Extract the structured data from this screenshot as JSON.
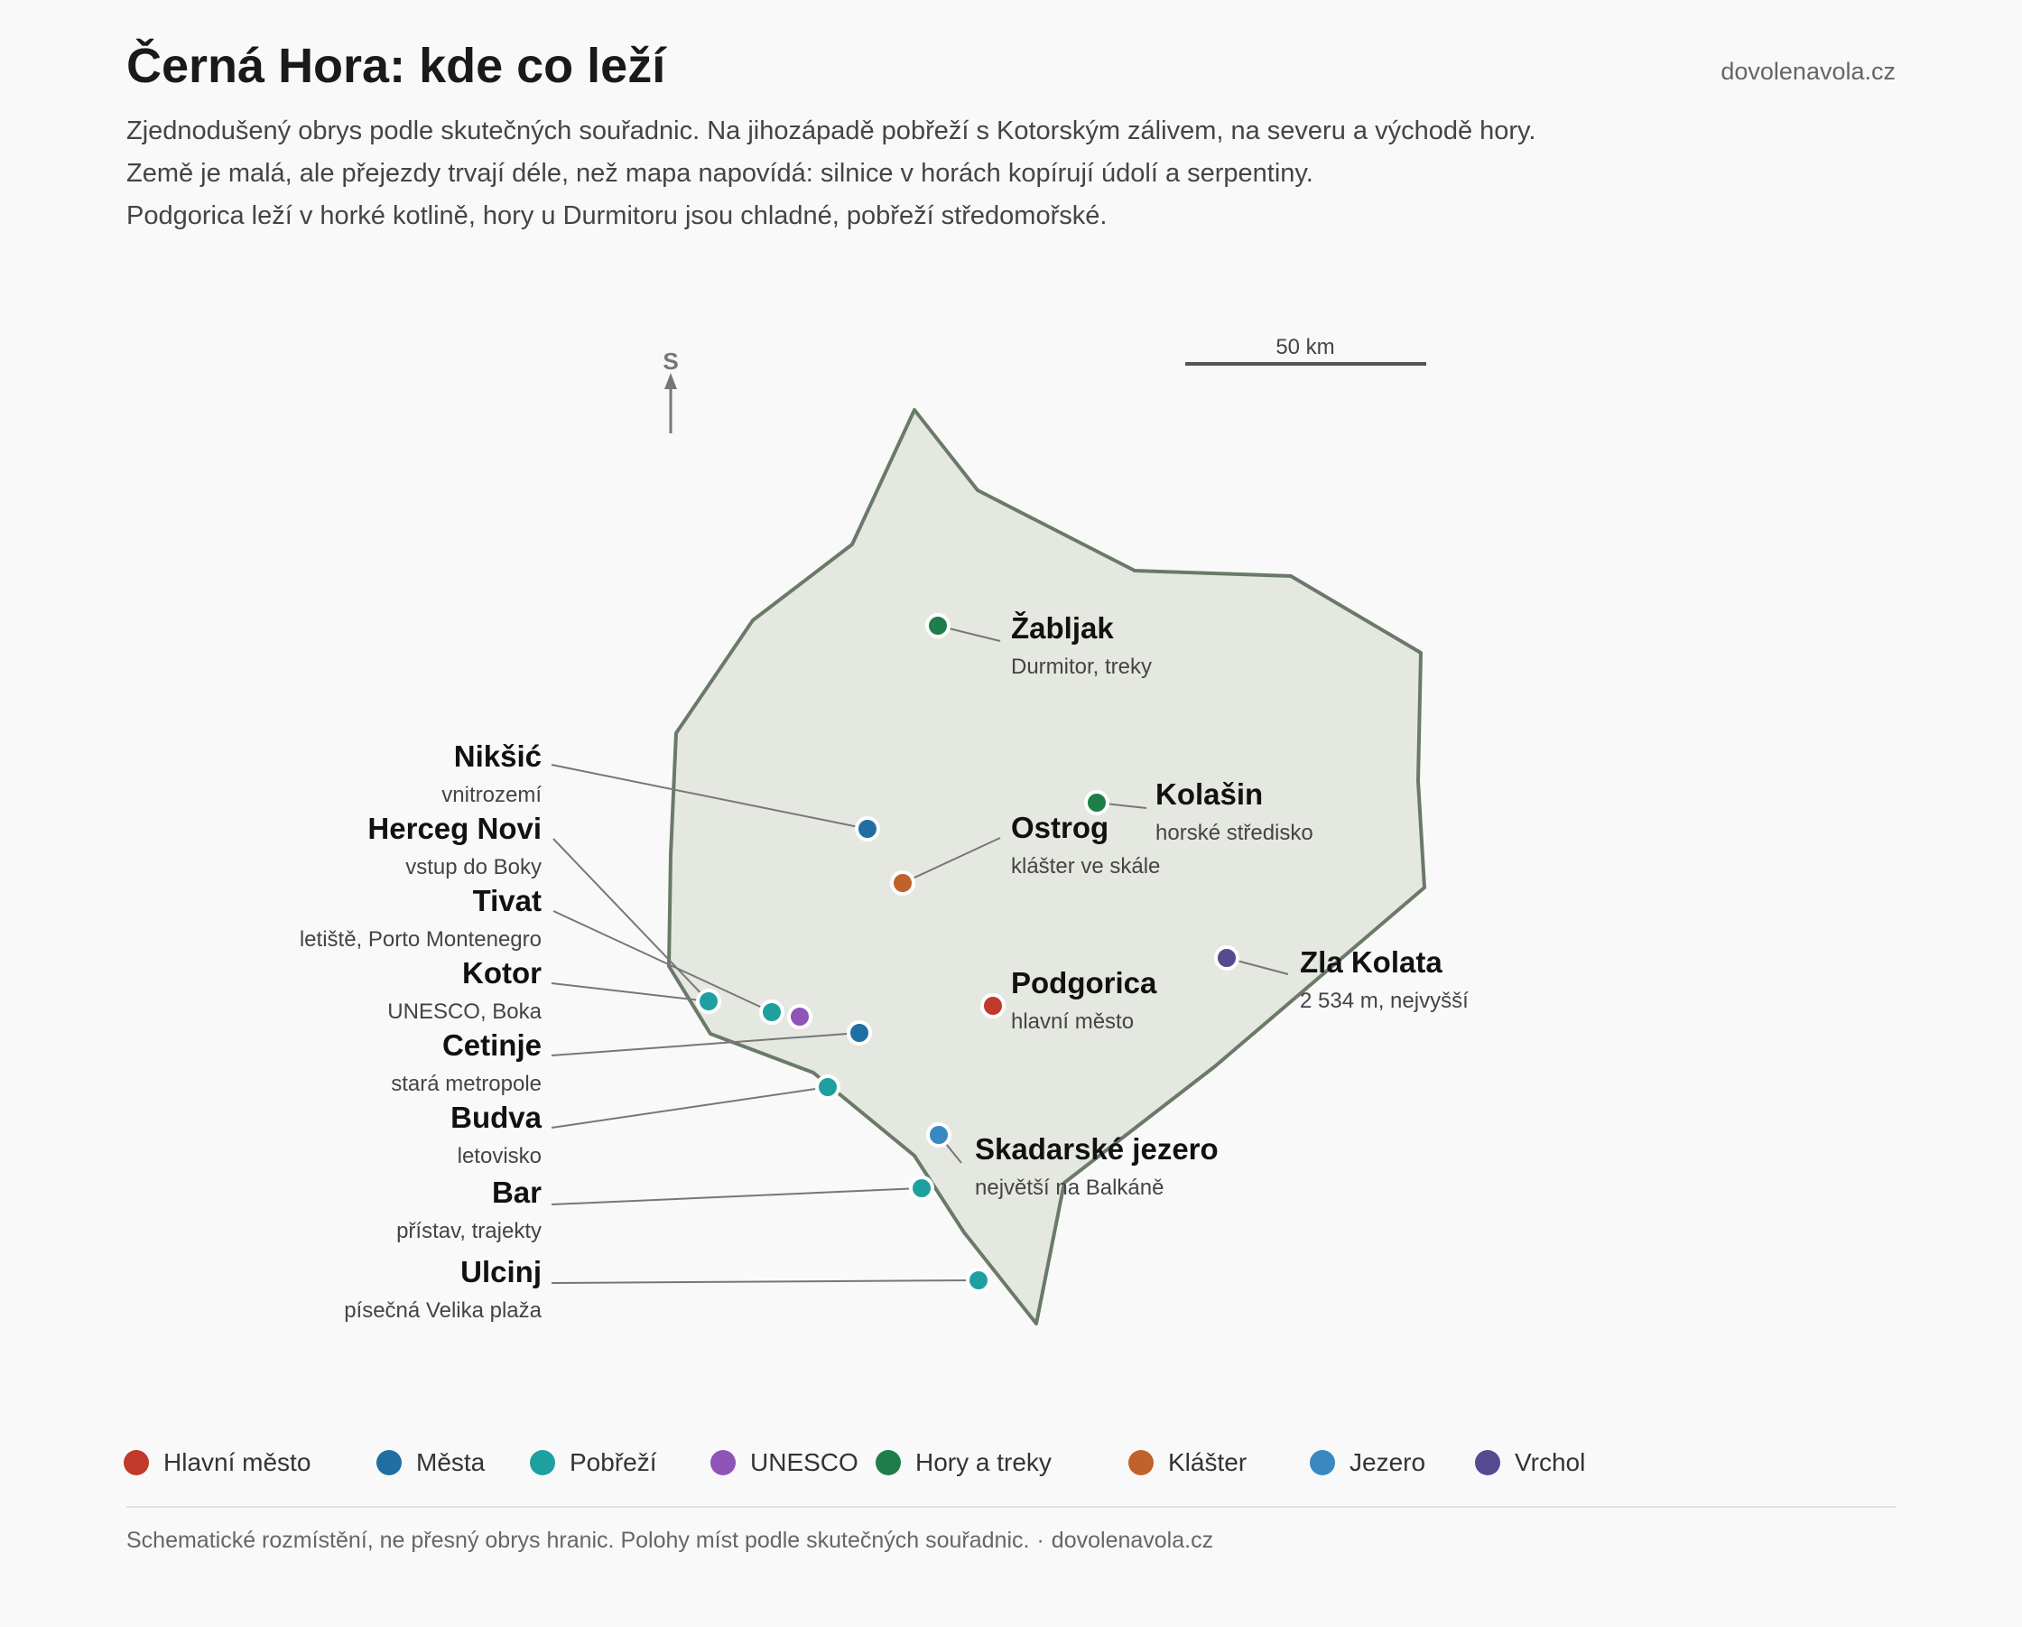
{
  "title": "Černá Hora: kde co leží",
  "site": "dovolenavola.cz",
  "intro": [
    "Zjednodušený obrys podle skutečných souřadnic. Na jihozápadě pobřeží s Kotorským zálivem, na severu a východě hory.",
    "Země je malá, ale přejezdy trvají déle, než mapa napovídá: silnice v horách kopírují údolí a serpentiny.",
    "Podgorica leží v horké kotlině, hory u Durmitoru jsou chladné, pobřeží středomořské."
  ],
  "map": {
    "north_label": "S",
    "scale_label": "50 km",
    "categories": [
      {
        "id": "capital",
        "label": "Hlavní město",
        "color": "#c0392b"
      },
      {
        "id": "cities",
        "label": "Města",
        "color": "#1f6fa3"
      },
      {
        "id": "coast",
        "label": "Pobřeží",
        "color": "#1fa0a0"
      },
      {
        "id": "unesco",
        "label": "UNESCO",
        "color": "#8e54b8"
      },
      {
        "id": "mountains",
        "label": "Hory a treky",
        "color": "#1e7e4a"
      },
      {
        "id": "monastery",
        "label": "Klášter",
        "color": "#c0622b"
      },
      {
        "id": "lake",
        "label": "Jezero",
        "color": "#3a88c2"
      },
      {
        "id": "peak",
        "label": "Vrchol",
        "color": "#574a91"
      }
    ],
    "places": [
      {
        "id": "zabljak",
        "name": "Žabljak",
        "note": "Durmitor, treky",
        "category": "mountains"
      },
      {
        "id": "niksic",
        "name": "Nikšić",
        "note": "vnitrozemí",
        "category": "cities"
      },
      {
        "id": "kolasin",
        "name": "Kolašin",
        "note": "horské středisko",
        "category": "mountains"
      },
      {
        "id": "ostrog",
        "name": "Ostrog",
        "note": "klášter ve skále",
        "category": "monastery"
      },
      {
        "id": "herceg-novi",
        "name": "Herceg Novi",
        "note": "vstup do Boky",
        "category": "coast"
      },
      {
        "id": "tivat",
        "name": "Tivat",
        "note": "letiště, Porto Montenegro",
        "category": "coast"
      },
      {
        "id": "zla-kolata",
        "name": "Zla Kolata",
        "note": "2 534 m, nejvyšší",
        "category": "peak"
      },
      {
        "id": "podgorica",
        "name": "Podgorica",
        "note": "hlavní město",
        "category": "capital"
      },
      {
        "id": "kotor",
        "name": "Kotor",
        "note": "UNESCO, Boka",
        "category": "unesco"
      },
      {
        "id": "cetinje",
        "name": "Cetinje",
        "note": "stará metropole",
        "category": "cities"
      },
      {
        "id": "budva",
        "name": "Budva",
        "note": "letovisko",
        "category": "coast"
      },
      {
        "id": "skadar",
        "name": "Skadarské jezero",
        "note": "největší na Balkáně",
        "category": "lake"
      },
      {
        "id": "bar",
        "name": "Bar",
        "note": "přístav, trajekty",
        "category": "coast"
      },
      {
        "id": "ulcinj",
        "name": "Ulcinj",
        "note": "písečná Velika plaža",
        "category": "coast"
      }
    ]
  },
  "footer": {
    "note": "Schematické rozmístění, ne přesný obrys hranic. Polohy míst podle skutečných souřadnic.",
    "separator": "·",
    "source": "dovolenavola.cz"
  }
}
